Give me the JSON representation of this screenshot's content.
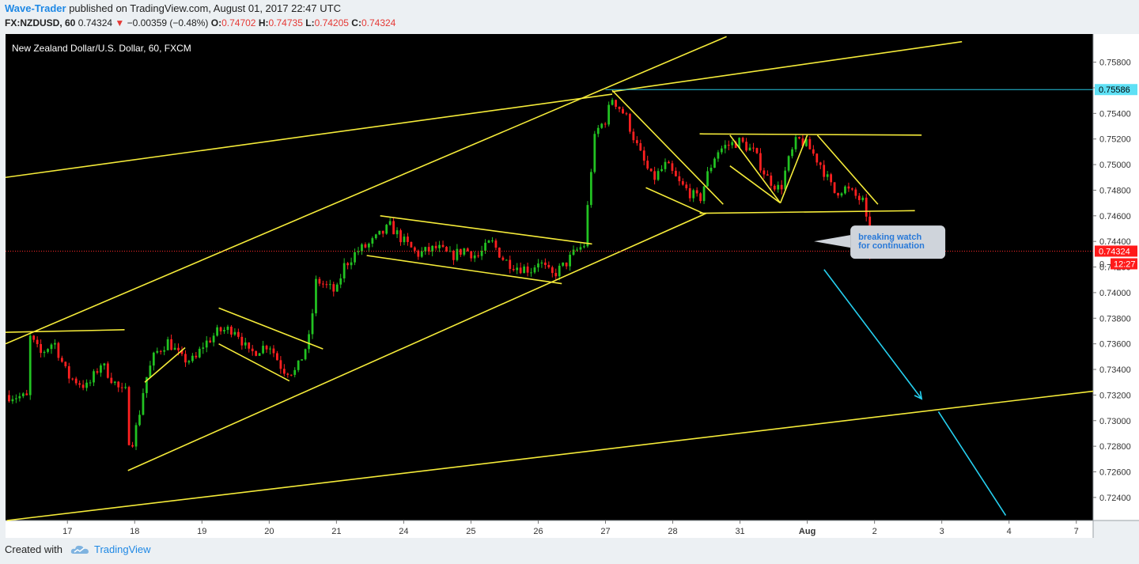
{
  "header": {
    "author": "Wave-Trader",
    "published_text": "published on TradingView.com, August 01, 2017 22:47 UTC",
    "symbol": "FX:NZDUSD, 60",
    "last": "0.74324",
    "arrow": "▼",
    "change": "−0.00359 (−0.48%)",
    "o_label": "O:",
    "o_value": "0.74702",
    "h_label": "H:",
    "h_value": "0.74735",
    "l_label": "L:",
    "l_value": "0.74205",
    "c_label": "C:",
    "c_value": "0.74324"
  },
  "chart_data": {
    "type": "candlestick",
    "title": "New Zealand Dollar/U.S. Dollar, 60, FXCM",
    "x_ticks": [
      {
        "label": "17",
        "x": 17.0
      },
      {
        "label": "18",
        "x": 18.0
      },
      {
        "label": "19",
        "x": 19.0
      },
      {
        "label": "20",
        "x": 20.0
      },
      {
        "label": "21",
        "x": 21.0
      },
      {
        "label": "24",
        "x": 22.0
      },
      {
        "label": "25",
        "x": 23.0
      },
      {
        "label": "26",
        "x": 24.0
      },
      {
        "label": "27",
        "x": 25.0
      },
      {
        "label": "28",
        "x": 26.0
      },
      {
        "label": "31",
        "x": 27.0
      },
      {
        "label": "Aug",
        "x": 28.0,
        "bold": true
      },
      {
        "label": "2",
        "x": 29.0
      },
      {
        "label": "3",
        "x": 30.0
      },
      {
        "label": "4",
        "x": 31.0
      },
      {
        "label": "7",
        "x": 32.0
      }
    ],
    "xlim": [
      16.08,
      32.25
    ],
    "ylim": [
      0.7222,
      0.7602
    ],
    "y_ticks": [
      "0.75800",
      "0.75600",
      "0.75400",
      "0.75200",
      "0.75000",
      "0.74800",
      "0.74600",
      "0.74400",
      "0.74200",
      "0.74000",
      "0.73800",
      "0.73600",
      "0.73400",
      "0.73200",
      "0.73000",
      "0.72800",
      "0.72600",
      "0.72400"
    ],
    "path": [
      [
        16.08,
        0.732
      ],
      [
        16.4,
        0.7318
      ],
      [
        16.42,
        0.7367
      ],
      [
        16.6,
        0.7352
      ],
      [
        16.8,
        0.7362
      ],
      [
        17.0,
        0.7335
      ],
      [
        17.3,
        0.7326
      ],
      [
        17.5,
        0.7345
      ],
      [
        17.8,
        0.7322
      ],
      [
        17.9,
        0.7323
      ],
      [
        17.92,
        0.7275
      ],
      [
        18.05,
        0.73
      ],
      [
        18.15,
        0.733
      ],
      [
        18.3,
        0.7352
      ],
      [
        18.5,
        0.7362
      ],
      [
        18.7,
        0.7348
      ],
      [
        18.9,
        0.7347
      ],
      [
        19.0,
        0.7358
      ],
      [
        19.25,
        0.737
      ],
      [
        19.5,
        0.7372
      ],
      [
        19.7,
        0.7352
      ],
      [
        20.0,
        0.736
      ],
      [
        20.2,
        0.734
      ],
      [
        20.4,
        0.7338
      ],
      [
        20.6,
        0.7365
      ],
      [
        20.7,
        0.741
      ],
      [
        21.0,
        0.74
      ],
      [
        21.1,
        0.742
      ],
      [
        21.3,
        0.7432
      ],
      [
        21.5,
        0.7438
      ],
      [
        21.8,
        0.7452
      ],
      [
        22.0,
        0.744
      ],
      [
        22.2,
        0.743
      ],
      [
        22.5,
        0.7435
      ],
      [
        22.7,
        0.7428
      ],
      [
        22.9,
        0.7434
      ],
      [
        23.1,
        0.7428
      ],
      [
        23.3,
        0.744
      ],
      [
        23.5,
        0.7425
      ],
      [
        23.7,
        0.742
      ],
      [
        23.9,
        0.7418
      ],
      [
        24.0,
        0.7425
      ],
      [
        24.2,
        0.7413
      ],
      [
        24.4,
        0.7422
      ],
      [
        24.55,
        0.7432
      ],
      [
        24.7,
        0.7438
      ],
      [
        24.75,
        0.748
      ],
      [
        24.85,
        0.7525
      ],
      [
        25.0,
        0.7535
      ],
      [
        25.1,
        0.7552
      ],
      [
        25.3,
        0.7538
      ],
      [
        25.5,
        0.751
      ],
      [
        25.7,
        0.7488
      ],
      [
        25.9,
        0.75
      ],
      [
        26.1,
        0.7485
      ],
      [
        26.3,
        0.7476
      ],
      [
        26.4,
        0.7472
      ],
      [
        26.5,
        0.749
      ],
      [
        26.65,
        0.751
      ],
      [
        26.8,
        0.7515
      ],
      [
        27.0,
        0.7518
      ],
      [
        27.2,
        0.751
      ],
      [
        27.4,
        0.749
      ],
      [
        27.6,
        0.748
      ],
      [
        27.7,
        0.75
      ],
      [
        27.85,
        0.752
      ],
      [
        28.0,
        0.7515
      ],
      [
        28.2,
        0.75
      ],
      [
        28.4,
        0.7478
      ],
      [
        28.55,
        0.7482
      ],
      [
        28.7,
        0.7476
      ],
      [
        28.85,
        0.747
      ],
      [
        28.9,
        0.7443
      ],
      [
        28.93,
        0.7432
      ]
    ],
    "trendlines": [
      [
        [
          16.08,
          0.749
        ],
        [
          25.1,
          0.7555
        ]
      ],
      [
        [
          16.08,
          0.736
        ],
        [
          26.8,
          0.76
        ]
      ],
      [
        [
          25.1,
          0.7557
        ],
        [
          30.3,
          0.7596
        ]
      ],
      [
        [
          16.08,
          0.7369
        ],
        [
          17.85,
          0.7371
        ]
      ],
      [
        [
          16.1,
          0.7222
        ],
        [
          32.25,
          0.7323
        ]
      ],
      [
        [
          17.9,
          0.7261
        ],
        [
          26.5,
          0.7462
        ]
      ],
      [
        [
          18.15,
          0.733
        ],
        [
          18.75,
          0.7357
        ]
      ],
      [
        [
          19.25,
          0.7388
        ],
        [
          20.8,
          0.7356
        ]
      ],
      [
        [
          19.25,
          0.736
        ],
        [
          20.3,
          0.7331
        ]
      ],
      [
        [
          21.65,
          0.746
        ],
        [
          24.8,
          0.7438
        ]
      ],
      [
        [
          21.45,
          0.7429
        ],
        [
          24.35,
          0.7407
        ]
      ],
      [
        [
          25.1,
          0.7558
        ],
        [
          26.75,
          0.7469
        ]
      ],
      [
        [
          25.6,
          0.7482
        ],
        [
          26.45,
          0.7462
        ]
      ],
      [
        [
          26.4,
          0.7462
        ],
        [
          29.6,
          0.7464
        ]
      ],
      [
        [
          26.4,
          0.7524
        ],
        [
          29.7,
          0.7523
        ]
      ],
      [
        [
          26.85,
          0.7523
        ],
        [
          27.6,
          0.747
        ]
      ],
      [
        [
          26.85,
          0.7499
        ],
        [
          27.6,
          0.747
        ]
      ],
      [
        [
          27.6,
          0.747
        ],
        [
          28.0,
          0.7523
        ]
      ],
      [
        [
          28.15,
          0.7523
        ],
        [
          29.05,
          0.7469
        ]
      ]
    ],
    "cyan_lines": [
      [
        [
          28.25,
          0.7418
        ],
        [
          29.7,
          0.7317
        ]
      ],
      [
        [
          29.95,
          0.7307
        ],
        [
          30.95,
          0.7226
        ]
      ]
    ],
    "resistance_level": {
      "value": 0.75586,
      "label": "0.75586",
      "from": 25.0
    },
    "current_price": {
      "value": 0.74324,
      "label": "0.74324",
      "countdown": "12:27",
      "countdown_prefix": "0."
    },
    "annotation": {
      "text_line1": "breaking watch",
      "text_line2": "for continuation",
      "x": 28.1,
      "y": 0.744
    }
  },
  "footer": {
    "created_with": "Created with",
    "brand": "TradingView"
  }
}
